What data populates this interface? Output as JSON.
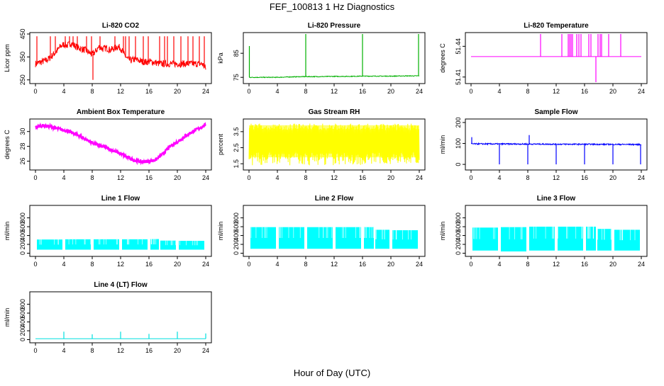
{
  "figure": {
    "title": "FEF_100813  1 Hz Diagnostics",
    "xlabel": "Hour of Day (UTC)"
  },
  "chart_data": [
    {
      "type": "line",
      "id": "co2",
      "title": "Li-820 CO2",
      "ylabel": "Licor ppm",
      "color": "#ff0000",
      "xlim": [
        0,
        24
      ],
      "ylim": [
        240,
        450
      ],
      "xticks": [
        0,
        4,
        8,
        12,
        16,
        20,
        24
      ],
      "yticks": [
        250,
        350,
        450
      ],
      "ytick_labels": [
        "250",
        "350",
        "450"
      ],
      "x": [
        0,
        0.5,
        1,
        1.5,
        2,
        2.5,
        3,
        3.5,
        4,
        4.5,
        5,
        5.5,
        6,
        6.5,
        7,
        7.5,
        8,
        8.5,
        9,
        9.5,
        10,
        10.5,
        11,
        11.5,
        12,
        12.5,
        13,
        13.5,
        14,
        14.5,
        15,
        15.5,
        16,
        16.5,
        17,
        17.5,
        18,
        18.5,
        19,
        19.5,
        20,
        20.5,
        21,
        21.5,
        22,
        22.5,
        23,
        23.5,
        24
      ],
      "y": [
        320,
        325,
        330,
        335,
        345,
        360,
        375,
        395,
        405,
        400,
        410,
        400,
        390,
        385,
        380,
        370,
        360,
        375,
        395,
        385,
        390,
        380,
        385,
        395,
        390,
        360,
        340,
        335,
        340,
        335,
        330,
        328,
        330,
        328,
        325,
        320,
        320,
        320,
        320,
        320,
        320,
        320,
        320,
        320,
        320,
        320,
        320,
        320,
        300
      ],
      "spikes_x": [
        0.2,
        2.1,
        2.8,
        4.2,
        4.8,
        5.3,
        5.9,
        7.2,
        7.9,
        8.1,
        9.1,
        11.2,
        12.4,
        12.7,
        13.2,
        14.1,
        15.2,
        15.9,
        17.5,
        18.2,
        18.6,
        19.5,
        20.5,
        21.5,
        22.2,
        23.1,
        23.8
      ],
      "spikes_y": [
        440,
        440,
        440,
        440,
        440,
        440,
        440,
        440,
        440,
        250,
        440,
        440,
        440,
        440,
        440,
        440,
        440,
        440,
        440,
        440,
        440,
        440,
        440,
        440,
        440,
        440,
        440
      ]
    },
    {
      "type": "line",
      "id": "pressure",
      "title": "Li-820 Pressure",
      "ylabel": "kPa",
      "color": "#00b000",
      "xlim": [
        0,
        24
      ],
      "ylim": [
        73,
        93
      ],
      "xticks": [
        0,
        4,
        8,
        12,
        16,
        20,
        24
      ],
      "yticks": [
        75,
        85
      ],
      "ytick_labels": [
        "75",
        "85"
      ],
      "x": [
        0,
        2,
        4,
        6,
        8,
        10,
        12,
        14,
        16,
        18,
        20,
        22,
        24
      ],
      "y": [
        75,
        75,
        75,
        75.2,
        75.3,
        75.3,
        75.4,
        75.4,
        75.5,
        75.5,
        75.5,
        75.6,
        75.6
      ],
      "spikes_x": [
        0.05,
        8,
        16,
        23.9
      ],
      "spikes_y": [
        88,
        93,
        93,
        93
      ]
    },
    {
      "type": "line",
      "id": "temp",
      "title": "Li-820 Temperature",
      "ylabel": "degrees C",
      "color": "#ff00ff",
      "xlim": [
        0,
        24
      ],
      "ylim": [
        51.405,
        51.452
      ],
      "xticks": [
        0,
        4,
        8,
        12,
        16,
        20,
        24
      ],
      "yticks": [
        51.41,
        51.44
      ],
      "ytick_labels": [
        "51.41",
        "51.44"
      ],
      "x": [
        0,
        24
      ],
      "y": [
        51.43,
        51.43
      ],
      "spikes_x": [
        9.8,
        12.8,
        13.7,
        13.9,
        14.1,
        14.3,
        14.9,
        15.2,
        15.5,
        16.6,
        16.9,
        17.6,
        17.9,
        18.2,
        18.4,
        19.4,
        21.1
      ],
      "spikes_y": [
        51.452,
        51.452,
        51.452,
        51.452,
        51.452,
        51.452,
        51.452,
        51.452,
        51.452,
        51.452,
        51.452,
        51.405,
        51.452,
        51.452,
        51.452,
        51.452,
        51.452
      ]
    },
    {
      "type": "line",
      "id": "boxtemp",
      "title": "Ambient Box Temperature",
      "ylabel": "degrees C",
      "color": "#ff00ff",
      "xlim": [
        0,
        24
      ],
      "ylim": [
        25,
        31.5
      ],
      "xticks": [
        0,
        4,
        8,
        12,
        16,
        20,
        24
      ],
      "yticks": [
        26,
        28,
        30
      ],
      "ytick_labels": [
        "26",
        "28",
        "30"
      ],
      "x": [
        0,
        1,
        2,
        3,
        4,
        5,
        6,
        7,
        8,
        9,
        10,
        11,
        12,
        13,
        14,
        15,
        16,
        17,
        18,
        19,
        20,
        21,
        22,
        23,
        24
      ],
      "y": [
        30.6,
        30.8,
        30.7,
        30.4,
        30.2,
        29.9,
        29.5,
        29.0,
        28.5,
        28.1,
        27.8,
        27.4,
        27.0,
        26.5,
        26.1,
        25.9,
        26.0,
        26.2,
        27.0,
        28.0,
        28.6,
        29.3,
        29.9,
        30.4,
        30.9
      ],
      "band": 0.4
    },
    {
      "type": "area",
      "id": "rh",
      "title": "Gas Stream RH",
      "ylabel": "percent",
      "color": "#ffff00",
      "xlim": [
        0,
        24
      ],
      "ylim": [
        1.2,
        4.2
      ],
      "xticks": [
        0,
        4,
        8,
        12,
        16,
        20,
        24
      ],
      "yticks": [
        1.5,
        2.5,
        3.5
      ],
      "ytick_labels": [
        "1.5",
        "2.5",
        "3.5"
      ],
      "low": 1.4,
      "high": 4.0
    },
    {
      "type": "line",
      "id": "sample",
      "title": "Sample Flow",
      "ylabel": "ml/min",
      "color": "#0000ff",
      "xlim": [
        0,
        24
      ],
      "ylim": [
        -20,
        210
      ],
      "xticks": [
        0,
        4,
        8,
        12,
        16,
        20,
        24
      ],
      "yticks": [
        0,
        100,
        200
      ],
      "ytick_labels": [
        "0",
        "100",
        "200"
      ],
      "x": [
        0,
        24
      ],
      "y": [
        98,
        95
      ],
      "spikes_x": [
        0.1,
        4,
        8,
        8.2,
        12,
        16,
        20,
        23.9
      ],
      "spikes_y": [
        130,
        0,
        0,
        140,
        0,
        0,
        0,
        0
      ]
    },
    {
      "type": "area",
      "id": "line1",
      "title": "Line 1 Flow",
      "ylabel": "ml/min",
      "color": "#00ffff",
      "xlim": [
        0,
        24
      ],
      "ylim": [
        -40,
        1050
      ],
      "xticks": [
        0,
        4,
        8,
        12,
        16,
        20,
        24
      ],
      "yticks": [
        0,
        200,
        400,
        600,
        800
      ],
      "ytick_labels": [
        "0",
        "200",
        "400",
        "600",
        "800"
      ],
      "segments": [
        [
          0.2,
          3.8,
          80,
          310
        ],
        [
          4.2,
          7.8,
          80,
          315
        ],
        [
          8.2,
          11.8,
          80,
          315
        ],
        [
          12.2,
          15.8,
          80,
          315
        ],
        [
          16.2,
          17.4,
          80,
          320
        ],
        [
          17.6,
          19.8,
          80,
          285
        ],
        [
          20.2,
          23.8,
          80,
          280
        ]
      ]
    },
    {
      "type": "area",
      "id": "line2",
      "title": "Line 2 Flow",
      "ylabel": "ml/min",
      "color": "#00ffff",
      "xlim": [
        0,
        24
      ],
      "ylim": [
        -40,
        1050
      ],
      "xticks": [
        0,
        4,
        8,
        12,
        16,
        20,
        24
      ],
      "yticks": [
        0,
        200,
        400,
        600,
        800
      ],
      "ytick_labels": [
        "0",
        "200",
        "400",
        "600",
        "800"
      ],
      "segments": [
        [
          0.2,
          3.8,
          100,
          590
        ],
        [
          4.2,
          7.8,
          100,
          590
        ],
        [
          8.2,
          11.8,
          100,
          590
        ],
        [
          12.2,
          15.8,
          100,
          590
        ],
        [
          16.2,
          17.6,
          100,
          590
        ],
        [
          17.8,
          19.8,
          100,
          530
        ],
        [
          20.2,
          23.8,
          100,
          520
        ]
      ]
    },
    {
      "type": "area",
      "id": "line3",
      "title": "Line 3 Flow",
      "ylabel": "ml/min",
      "color": "#00ffff",
      "xlim": [
        0,
        24
      ],
      "ylim": [
        -40,
        1050
      ],
      "xticks": [
        0,
        4,
        8,
        12,
        16,
        20,
        24
      ],
      "yticks": [
        0,
        200,
        400,
        600,
        800
      ],
      "ytick_labels": [
        "0",
        "200",
        "400",
        "600",
        "800"
      ],
      "segments": [
        [
          0.2,
          3.8,
          60,
          580
        ],
        [
          4.2,
          7.8,
          40,
          590
        ],
        [
          8.2,
          11.8,
          60,
          600
        ],
        [
          12.2,
          15.8,
          60,
          600
        ],
        [
          16.2,
          17.6,
          60,
          600
        ],
        [
          17.8,
          19.8,
          60,
          550
        ],
        [
          20.2,
          23.8,
          60,
          530
        ]
      ]
    },
    {
      "type": "line",
      "id": "line4",
      "title": "Line 4 (LT) Flow",
      "ylabel": "ml/min",
      "color": "#00e0e0",
      "xlim": [
        0,
        24
      ],
      "ylim": [
        -40,
        1050
      ],
      "xticks": [
        0,
        4,
        8,
        12,
        16,
        20,
        24
      ],
      "yticks": [
        0,
        200,
        400,
        600,
        800
      ],
      "ytick_labels": [
        "0",
        "200",
        "400",
        "600",
        "800"
      ],
      "x": [
        0,
        24
      ],
      "y": [
        20,
        20
      ],
      "spikes_x": [
        4,
        8,
        12,
        16,
        20,
        24
      ],
      "spikes_y": [
        180,
        120,
        180,
        130,
        180,
        140
      ]
    }
  ]
}
